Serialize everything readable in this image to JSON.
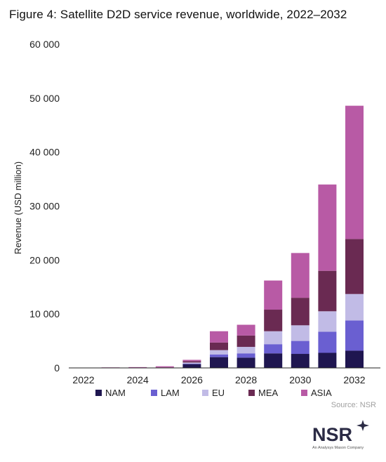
{
  "title": "Figure 4: Satellite D2D service revenue, worldwide, 2022–2032",
  "source": "Source: NSR",
  "logo": {
    "text": "NSR",
    "subtitle": "An Analysys Mason Company"
  },
  "colors": {
    "NAM": "#1f1650",
    "LAM": "#6a5fd1",
    "EU": "#c1bbe6",
    "MEA": "#6a2a52",
    "ASIA": "#b85aa5",
    "axis": "#222222"
  },
  "chart_data": {
    "type": "bar",
    "stacked": true,
    "categories": [
      "2022",
      "2023",
      "2024",
      "2025",
      "2026",
      "2027",
      "2028",
      "2029",
      "2030",
      "2031",
      "2032"
    ],
    "x_tick_labels": [
      "2022",
      "",
      "2024",
      "",
      "2026",
      "",
      "2028",
      "",
      "2030",
      "",
      "2032"
    ],
    "series": [
      {
        "name": "NAM",
        "values": [
          0,
          0,
          0,
          0,
          700,
          2000,
          1900,
          2700,
          2600,
          2800,
          3200
        ]
      },
      {
        "name": "LAM",
        "values": [
          0,
          0,
          0,
          0,
          100,
          500,
          800,
          1700,
          2400,
          3900,
          5600
        ]
      },
      {
        "name": "EU",
        "values": [
          0,
          0,
          0,
          0,
          200,
          800,
          1200,
          2400,
          2900,
          3800,
          4900
        ]
      },
      {
        "name": "MEA",
        "values": [
          0,
          0,
          0,
          100,
          250,
          1400,
          2100,
          4000,
          5100,
          7500,
          10200
        ]
      },
      {
        "name": "ASIA",
        "values": [
          50,
          100,
          150,
          200,
          250,
          2100,
          2000,
          5400,
          8300,
          16000,
          24700
        ]
      }
    ],
    "ylabel": "Revenue (USD million)",
    "xlabel": "",
    "ylim": [
      0,
      60000
    ],
    "y_ticks": [
      0,
      10000,
      20000,
      30000,
      40000,
      50000,
      60000
    ],
    "y_tick_labels": [
      "0",
      "10 000",
      "20 000",
      "30 000",
      "40 000",
      "50 000",
      "60 000"
    ],
    "grid": false,
    "legend_position": "bottom"
  }
}
